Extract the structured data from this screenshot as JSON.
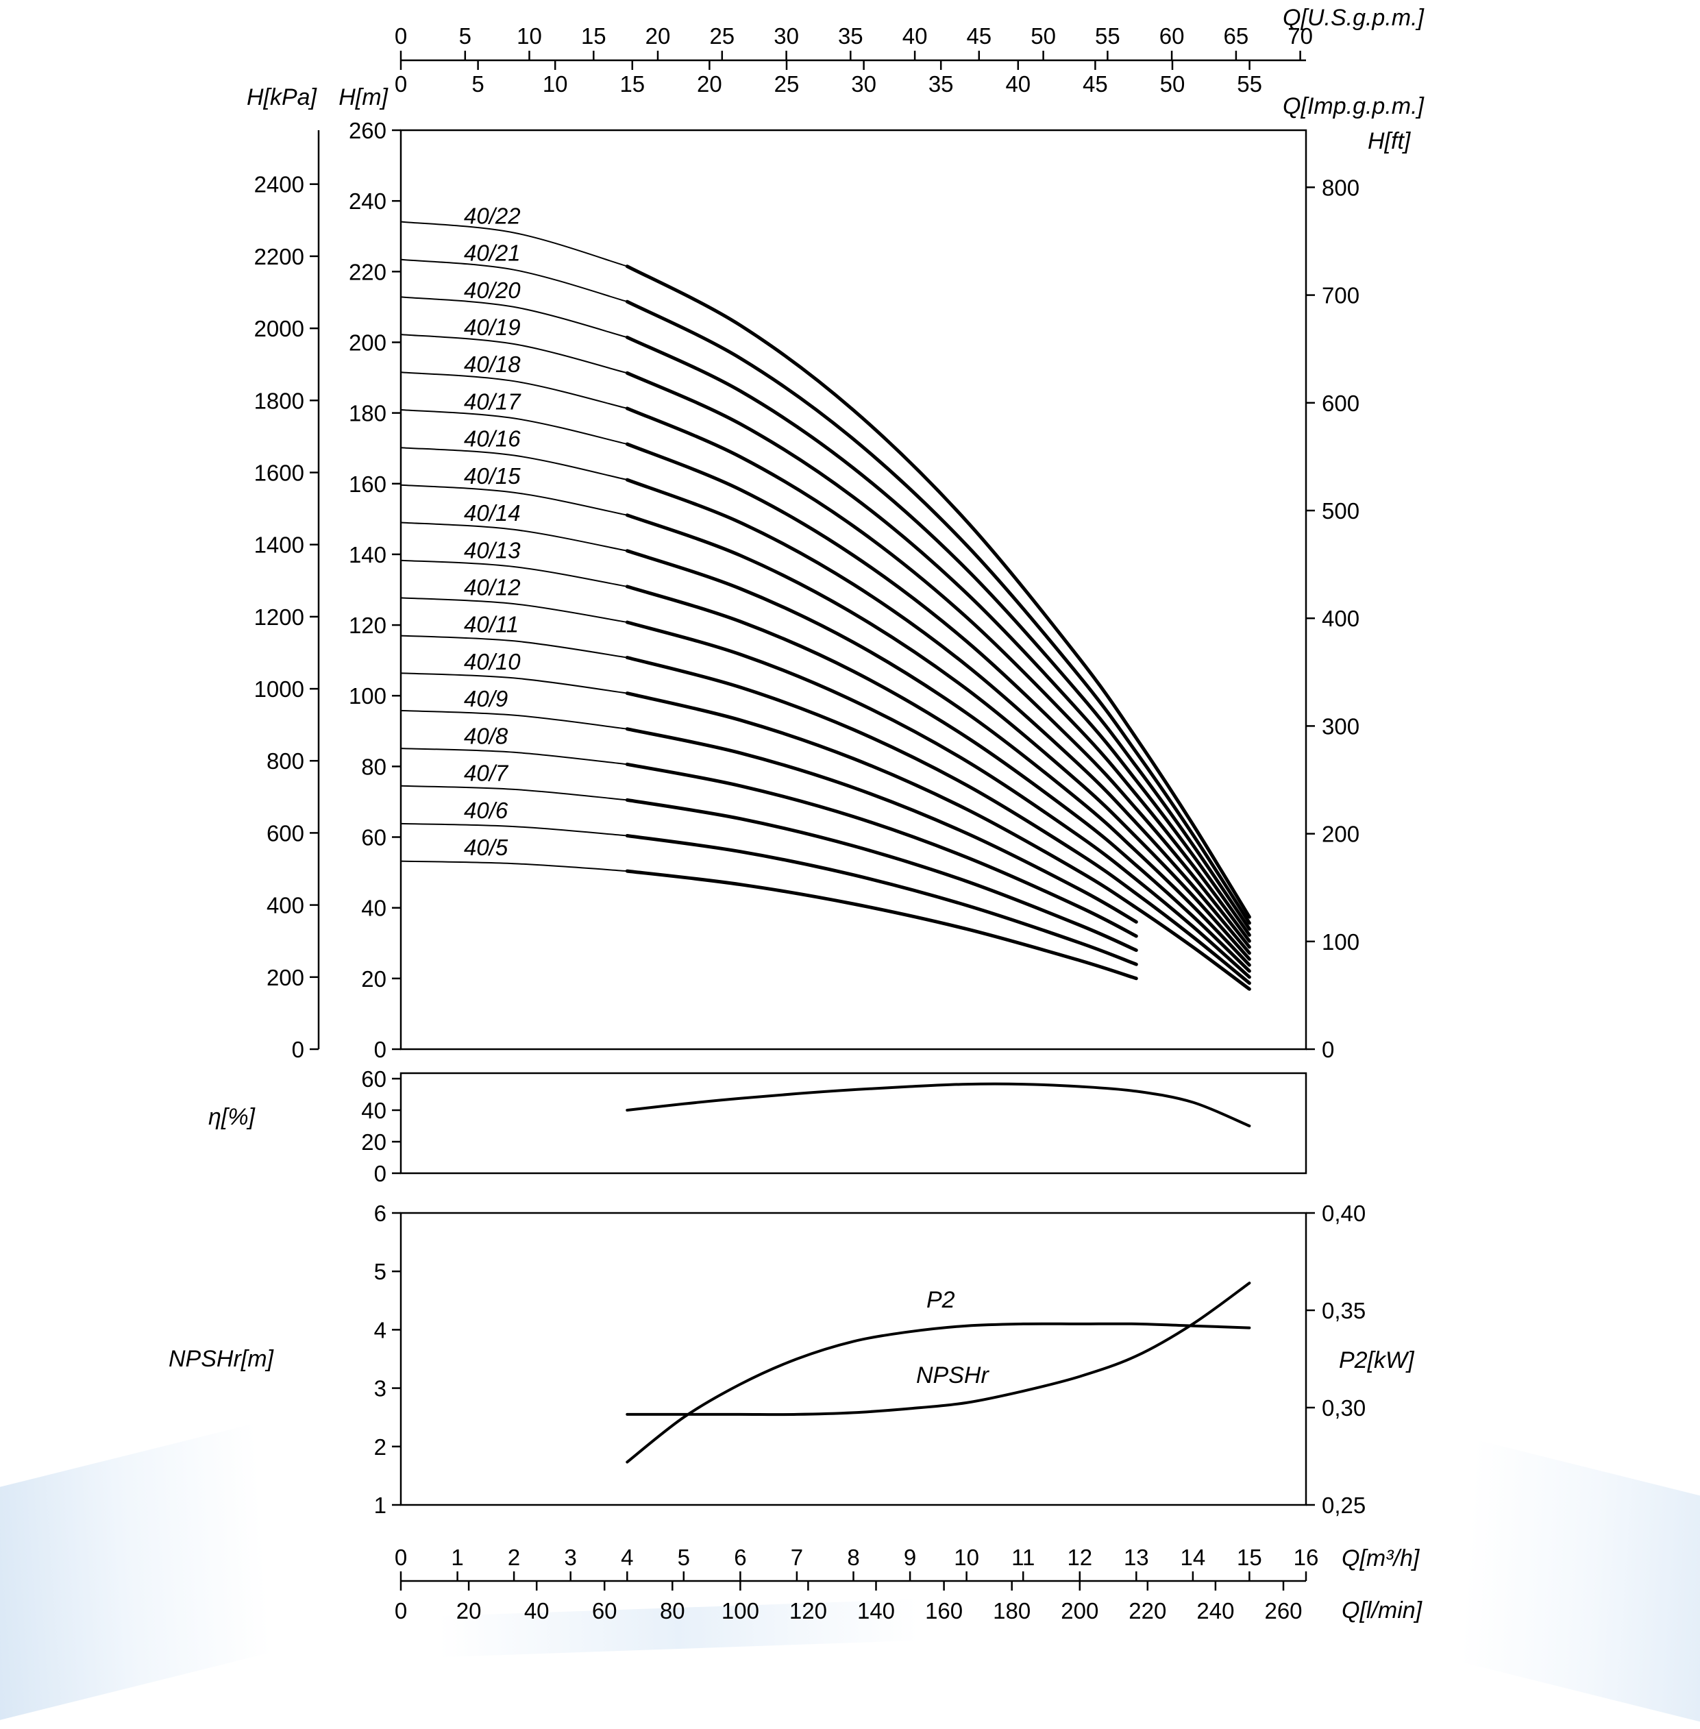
{
  "page": {
    "background": "#ffffff",
    "curve_color": "#000000",
    "decoration_color": "#b8cfe8"
  },
  "chart_data": [
    {
      "type": "line",
      "name": "head-vs-flow",
      "x_axes": [
        {
          "id": "q_usgpm",
          "title": "Q[U.S.g.p.m.]",
          "position": "top-outer",
          "ticks": [
            0,
            5,
            10,
            15,
            20,
            25,
            30,
            35,
            40,
            45,
            50,
            55,
            60,
            65,
            70
          ]
        },
        {
          "id": "q_impgpm",
          "title": "Q[Imp.g.p.m.]",
          "position": "top-inner",
          "ticks": [
            0,
            5,
            10,
            15,
            20,
            25,
            30,
            35,
            40,
            45,
            50,
            55
          ]
        },
        {
          "id": "q_m3h",
          "title": "Q[m³/h]",
          "position": "bottom-inner",
          "ticks": [
            0,
            1,
            2,
            3,
            4,
            5,
            6,
            7,
            8,
            9,
            10,
            11,
            12,
            13,
            14,
            15,
            16
          ],
          "range": [
            0,
            16
          ]
        },
        {
          "id": "q_lmin",
          "title": "Q[l/min]",
          "position": "bottom-outer",
          "ticks": [
            0,
            20,
            40,
            60,
            80,
            100,
            120,
            140,
            160,
            180,
            200,
            220,
            240,
            260
          ]
        }
      ],
      "y_axes": [
        {
          "id": "h_kpa",
          "title": "H[kPa]",
          "position": "left-outer",
          "ticks": [
            0,
            200,
            400,
            600,
            800,
            1000,
            1200,
            1400,
            1600,
            1800,
            2000,
            2200,
            2400
          ]
        },
        {
          "id": "h_m",
          "title": "H[m]",
          "position": "left-inner",
          "ticks": [
            0,
            20,
            40,
            60,
            80,
            100,
            120,
            140,
            160,
            180,
            200,
            220,
            240,
            260
          ],
          "range": [
            0,
            260
          ]
        },
        {
          "id": "h_ft",
          "title": "H[ft]",
          "position": "right",
          "ticks": [
            0,
            100,
            200,
            300,
            400,
            500,
            600,
            700,
            800
          ]
        }
      ],
      "duty_range_start_q_m3h": 4,
      "series": [
        {
          "name": "40/22",
          "q_m3h": [
            0,
            2,
            4,
            6,
            8,
            10,
            12,
            13,
            14,
            15
          ],
          "h_m": [
            234.1,
            231.0,
            221.5,
            204.8,
            180.8,
            149.4,
            110.4,
            88.0,
            63.6,
            37.4
          ]
        },
        {
          "name": "40/21",
          "q_m3h": [
            0,
            2,
            4,
            6,
            8,
            10,
            12,
            13,
            14,
            15
          ],
          "h_m": [
            223.4,
            220.5,
            211.5,
            195.5,
            172.6,
            142.6,
            105.4,
            84.0,
            60.7,
            35.7
          ]
        },
        {
          "name": "40/20",
          "q_m3h": [
            0,
            2,
            4,
            6,
            8,
            10,
            12,
            13,
            14,
            15
          ],
          "h_m": [
            212.8,
            210.0,
            201.4,
            186.2,
            164.4,
            135.8,
            100.4,
            80.0,
            57.8,
            34.0
          ]
        },
        {
          "name": "40/19",
          "q_m3h": [
            0,
            2,
            4,
            6,
            8,
            10,
            12,
            13,
            14,
            15
          ],
          "h_m": [
            202.2,
            199.5,
            191.3,
            176.9,
            156.2,
            129.0,
            95.4,
            76.0,
            54.9,
            32.3
          ]
        },
        {
          "name": "40/18",
          "q_m3h": [
            0,
            2,
            4,
            6,
            8,
            10,
            12,
            13,
            14,
            15
          ],
          "h_m": [
            191.5,
            189.0,
            181.3,
            167.6,
            148.0,
            122.2,
            90.4,
            72.0,
            52.0,
            30.6
          ]
        },
        {
          "name": "40/17",
          "q_m3h": [
            0,
            2,
            4,
            6,
            8,
            10,
            12,
            13,
            14,
            15
          ],
          "h_m": [
            180.9,
            178.5,
            171.2,
            158.3,
            139.7,
            115.4,
            85.3,
            68.0,
            49.1,
            28.9
          ]
        },
        {
          "name": "40/16",
          "q_m3h": [
            0,
            2,
            4,
            6,
            8,
            10,
            12,
            13,
            14,
            15
          ],
          "h_m": [
            170.2,
            168.0,
            161.1,
            149.0,
            131.5,
            108.6,
            80.3,
            64.0,
            46.2,
            27.2
          ]
        },
        {
          "name": "40/15",
          "q_m3h": [
            0,
            2,
            4,
            6,
            8,
            10,
            12,
            13,
            14,
            15
          ],
          "h_m": [
            159.6,
            157.5,
            151.1,
            139.7,
            123.3,
            101.9,
            75.3,
            60.0,
            43.4,
            25.5
          ]
        },
        {
          "name": "40/14",
          "q_m3h": [
            0,
            2,
            4,
            6,
            8,
            10,
            12,
            13,
            14,
            15
          ],
          "h_m": [
            149.0,
            147.0,
            141.0,
            130.3,
            115.1,
            95.1,
            70.3,
            56.0,
            40.5,
            23.8
          ]
        },
        {
          "name": "40/13",
          "q_m3h": [
            0,
            2,
            4,
            6,
            8,
            10,
            12,
            13,
            14,
            15
          ],
          "h_m": [
            138.3,
            136.5,
            130.9,
            121.0,
            106.9,
            88.3,
            65.3,
            52.0,
            37.6,
            22.1
          ]
        },
        {
          "name": "40/12",
          "q_m3h": [
            0,
            2,
            4,
            6,
            8,
            10,
            12,
            13,
            14,
            15
          ],
          "h_m": [
            127.7,
            126.0,
            120.8,
            111.7,
            98.6,
            81.5,
            60.2,
            48.0,
            34.7,
            20.4
          ]
        },
        {
          "name": "40/11",
          "q_m3h": [
            0,
            2,
            4,
            6,
            8,
            10,
            12,
            13,
            14,
            15
          ],
          "h_m": [
            117.0,
            115.5,
            110.8,
            102.4,
            90.4,
            74.7,
            55.2,
            44.0,
            31.8,
            18.7
          ]
        },
        {
          "name": "40/10",
          "q_m3h": [
            0,
            2,
            4,
            6,
            8,
            10,
            12,
            13,
            14,
            15
          ],
          "h_m": [
            106.4,
            105.0,
            100.7,
            93.1,
            82.2,
            67.9,
            50.2,
            40.0,
            28.9,
            17.0
          ]
        },
        {
          "name": "40/9",
          "q_m3h": [
            0,
            2,
            4,
            6,
            8,
            10,
            12,
            13
          ],
          "h_m": [
            95.8,
            94.5,
            90.6,
            83.8,
            74.0,
            61.1,
            45.2,
            36.0
          ]
        },
        {
          "name": "40/8",
          "q_m3h": [
            0,
            2,
            4,
            6,
            8,
            10,
            12,
            13
          ],
          "h_m": [
            85.1,
            84.0,
            80.6,
            74.5,
            65.8,
            54.3,
            40.2,
            32.0
          ]
        },
        {
          "name": "40/7",
          "q_m3h": [
            0,
            2,
            4,
            6,
            8,
            10,
            12,
            13
          ],
          "h_m": [
            74.5,
            73.5,
            70.5,
            65.2,
            57.5,
            47.5,
            35.1,
            28.0
          ]
        },
        {
          "name": "40/6",
          "q_m3h": [
            0,
            2,
            4,
            6,
            8,
            10,
            12,
            13
          ],
          "h_m": [
            63.8,
            63.0,
            60.4,
            55.9,
            49.3,
            40.7,
            30.1,
            24.0
          ]
        },
        {
          "name": "40/5",
          "q_m3h": [
            0,
            2,
            4,
            6,
            8,
            10,
            12,
            13
          ],
          "h_m": [
            53.2,
            52.5,
            50.4,
            46.6,
            41.1,
            34.0,
            25.1,
            20.0
          ]
        }
      ]
    },
    {
      "type": "line",
      "name": "efficiency-vs-flow",
      "y_axis": {
        "id": "eta",
        "title": "η[%]",
        "ticks": [
          0,
          20,
          40,
          60
        ],
        "range": [
          0,
          60
        ]
      },
      "series": [
        {
          "name": "efficiency",
          "q_m3h": [
            4,
            5,
            6,
            7,
            8,
            9,
            10,
            11,
            12,
            13,
            14,
            15
          ],
          "values": [
            40,
            44,
            47.5,
            50.5,
            53,
            55,
            56.5,
            56.5,
            55,
            52,
            45,
            30
          ]
        }
      ]
    },
    {
      "type": "line",
      "name": "npshr-and-p2-vs-flow",
      "y_axis_left": {
        "id": "npshr",
        "title": "NPSHr[m]",
        "ticks": [
          1,
          2,
          3,
          4,
          5,
          6
        ],
        "range": [
          1,
          6
        ]
      },
      "y_axis_right": {
        "id": "p2",
        "title": "P2[kW]",
        "tick_labels": [
          "0,25",
          "0,30",
          "0,35",
          "0,40"
        ],
        "tick_values": [
          0.25,
          0.3,
          0.35,
          0.4
        ],
        "range": [
          0.25,
          0.4
        ]
      },
      "series": [
        {
          "name": "P2",
          "label": "P2",
          "axis": "right",
          "q_m3h": [
            4,
            5,
            6,
            7,
            8,
            9,
            10,
            11,
            12,
            13,
            14,
            15
          ],
          "values": [
            0.272,
            0.295,
            0.312,
            0.325,
            0.334,
            0.339,
            0.342,
            0.343,
            0.343,
            0.343,
            0.342,
            0.341
          ]
        },
        {
          "name": "NPSHr",
          "label": "NPSHr",
          "axis": "left",
          "q_m3h": [
            4,
            5,
            6,
            7,
            8,
            9,
            10,
            11,
            12,
            13,
            14,
            15
          ],
          "values": [
            2.55,
            2.55,
            2.55,
            2.55,
            2.58,
            2.65,
            2.75,
            2.95,
            3.2,
            3.55,
            4.1,
            4.8
          ]
        }
      ]
    }
  ]
}
